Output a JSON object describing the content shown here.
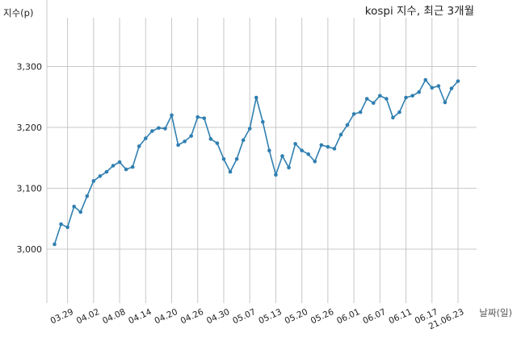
{
  "chart_data": {
    "type": "line",
    "title": "kospi 지수, 최근 3개월",
    "ylabel": "지수(p)",
    "xlabel": "날짜(일)",
    "ylim": [
      2870,
      3400
    ],
    "yticks": [
      3000,
      3100,
      3200,
      3300
    ],
    "ytick_labels": [
      "3,000",
      "3,100",
      "3,200",
      "3,300"
    ],
    "grid": true,
    "x_dates": [
      "21.03.25",
      "21.03.26",
      "21.03.29",
      "21.03.30",
      "21.03.31",
      "21.04.01",
      "21.04.02",
      "21.04.05",
      "21.04.06",
      "21.04.07",
      "21.04.08",
      "21.04.09",
      "21.04.12",
      "21.04.13",
      "21.04.14",
      "21.04.15",
      "21.04.16",
      "21.04.19",
      "21.04.20",
      "21.04.21",
      "21.04.22",
      "21.04.23",
      "21.04.26",
      "21.04.27",
      "21.04.28",
      "21.04.29",
      "21.04.30",
      "21.05.03",
      "21.05.04",
      "21.05.06",
      "21.05.07",
      "21.05.10",
      "21.05.11",
      "21.05.12",
      "21.05.13",
      "21.05.14",
      "21.05.17",
      "21.05.18",
      "21.05.20",
      "21.05.21",
      "21.05.24",
      "21.05.25",
      "21.05.26",
      "21.05.27",
      "21.05.28",
      "21.05.31",
      "21.06.01",
      "21.06.02",
      "21.06.03",
      "21.06.04",
      "21.06.07",
      "21.06.08",
      "21.06.09",
      "21.06.10",
      "21.06.11",
      "21.06.14",
      "21.06.15",
      "21.06.16",
      "21.06.17",
      "21.06.18",
      "21.06.21",
      "21.06.22",
      "21.06.23"
    ],
    "values": [
      3008,
      3041,
      3036,
      3070,
      3061,
      3087,
      3112,
      3120,
      3127,
      3137,
      3143,
      3131,
      3135,
      3169,
      3182,
      3194,
      3199,
      3198,
      3220,
      3171,
      3177,
      3186,
      3217,
      3215,
      3181,
      3174,
      3148,
      3127,
      3148,
      3179,
      3198,
      3249,
      3209,
      3162,
      3122,
      3153,
      3134,
      3173,
      3162,
      3156,
      3144,
      3171,
      3168,
      3165,
      3188,
      3204,
      3222,
      3225,
      3247,
      3240,
      3252,
      3247,
      3216,
      3225,
      3249,
      3252,
      3258,
      3278,
      3265,
      3268,
      3241,
      3264,
      3276
    ],
    "xtick_labels": [
      "03.29",
      "04.02",
      "04.08",
      "04.14",
      "04.20",
      "04.26",
      "04.30",
      "05.07",
      "05.13",
      "05.20",
      "05.26",
      "06.01",
      "06.07",
      "06.11",
      "06.17",
      "21.06.23"
    ],
    "xtick_index": [
      2,
      6,
      10,
      14,
      18,
      22,
      26,
      30,
      34,
      38,
      42,
      46,
      50,
      54,
      58,
      62
    ]
  }
}
